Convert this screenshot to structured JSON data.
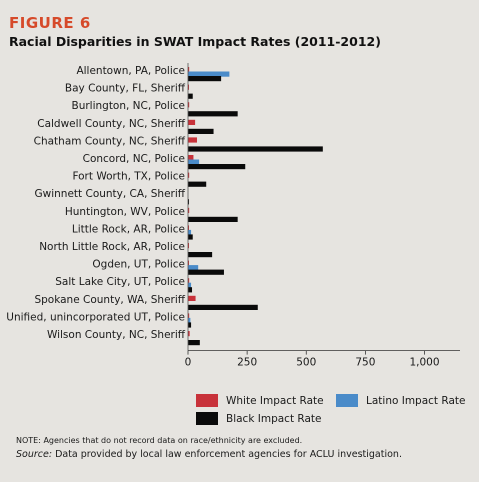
{
  "figure_label": "FIGURE 6",
  "colors": {
    "white": "#c8323a",
    "latino": "#4a8bc9",
    "black": "#0a0a0a",
    "accent": "#d64a2a"
  },
  "chart_data": {
    "type": "bar",
    "orientation": "horizontal",
    "title": "Racial Disparities in SWAT Impact Rates (2011-2012)",
    "categories": [
      "Allentown, PA, Police",
      "Bay County, FL, Sheriff",
      "Burlington, NC, Police",
      "Caldwell County, NC, Sheriff",
      "Chatham County, NC, Sheriff",
      "Concord, NC, Police",
      "Fort Worth, TX, Police",
      "Gwinnett County, CA, Sheriff",
      "Huntington, WV, Police",
      "Little Rock, AR, Police",
      "North Little Rock, AR, Police",
      "Ogden, UT, Police",
      "Salt Lake City, UT, Police",
      "Spokane County, WA, Sheriff",
      "Unified, unincorporated UT, Police",
      "Wilson County, NC, Sheriff"
    ],
    "series": [
      {
        "name": "White Impact Rate",
        "color_key": "white",
        "values": [
          5,
          2,
          5,
          30,
          38,
          23,
          5,
          0,
          5,
          3,
          2,
          4,
          5,
          32,
          5,
          7
        ]
      },
      {
        "name": "Latino Impact Rate",
        "color_key": "latino",
        "values": [
          175,
          0,
          0,
          0,
          0,
          47,
          0,
          0,
          0,
          13,
          0,
          43,
          13,
          0,
          10,
          0
        ]
      },
      {
        "name": "Black Impact Rate",
        "color_key": "black",
        "values": [
          140,
          20,
          210,
          108,
          570,
          242,
          77,
          2,
          210,
          20,
          102,
          152,
          17,
          295,
          13,
          50
        ]
      }
    ],
    "xlim": [
      0,
      1150
    ],
    "xticks": [
      0,
      250,
      500,
      750,
      1000
    ],
    "xtick_labels": [
      "0",
      "250",
      "500",
      "750",
      "1,000"
    ],
    "legend_position": "bottom"
  },
  "note": "NOTE: Agencies that do not record data on race/ethnicity are excluded.",
  "source_label": "Source:",
  "source_text": " Data provided by local law enforcement agencies for ACLU investigation."
}
